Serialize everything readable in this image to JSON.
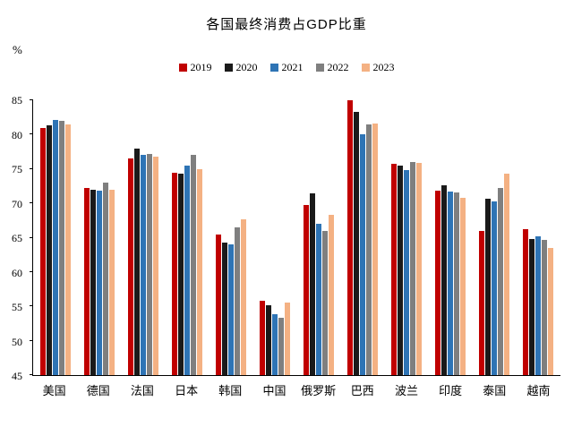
{
  "chart_data": {
    "type": "bar",
    "title": "各国最终消费占GDP比重",
    "unit_label": "%",
    "categories": [
      "美国",
      "德国",
      "法国",
      "日本",
      "韩国",
      "中国",
      "俄罗斯",
      "巴西",
      "波兰",
      "印度",
      "泰国",
      "越南"
    ],
    "series": [
      {
        "name": "2019",
        "color": "#c00000",
        "values": [
          81.0,
          72.2,
          76.5,
          74.5,
          65.5,
          55.8,
          69.7,
          85.0,
          75.7,
          71.9,
          66.0,
          66.3
        ]
      },
      {
        "name": "2020",
        "color": "#1a1a1a",
        "values": [
          81.3,
          72.0,
          78.0,
          74.3,
          64.3,
          55.2,
          71.5,
          83.3,
          75.5,
          72.6,
          70.7,
          64.8
        ]
      },
      {
        "name": "2021",
        "color": "#2e74b5",
        "values": [
          82.2,
          71.9,
          77.0,
          75.5,
          64.0,
          53.8,
          67.0,
          80.0,
          74.8,
          71.7,
          70.3,
          65.2
        ]
      },
      {
        "name": "2022",
        "color": "#7f7f7f",
        "values": [
          82.0,
          73.0,
          77.2,
          77.0,
          66.5,
          53.4,
          66.0,
          81.5,
          76.0,
          71.6,
          72.2,
          64.7
        ]
      },
      {
        "name": "2023",
        "color": "#f4b183",
        "values": [
          81.5,
          72.0,
          76.8,
          75.0,
          67.7,
          55.5,
          68.3,
          81.6,
          75.9,
          70.8,
          74.3,
          63.5
        ]
      }
    ],
    "ylim": [
      45,
      85
    ],
    "yticks": [
      45,
      50,
      55,
      60,
      65,
      70,
      75,
      80,
      85
    ],
    "grid": false,
    "legend_position": "top"
  }
}
